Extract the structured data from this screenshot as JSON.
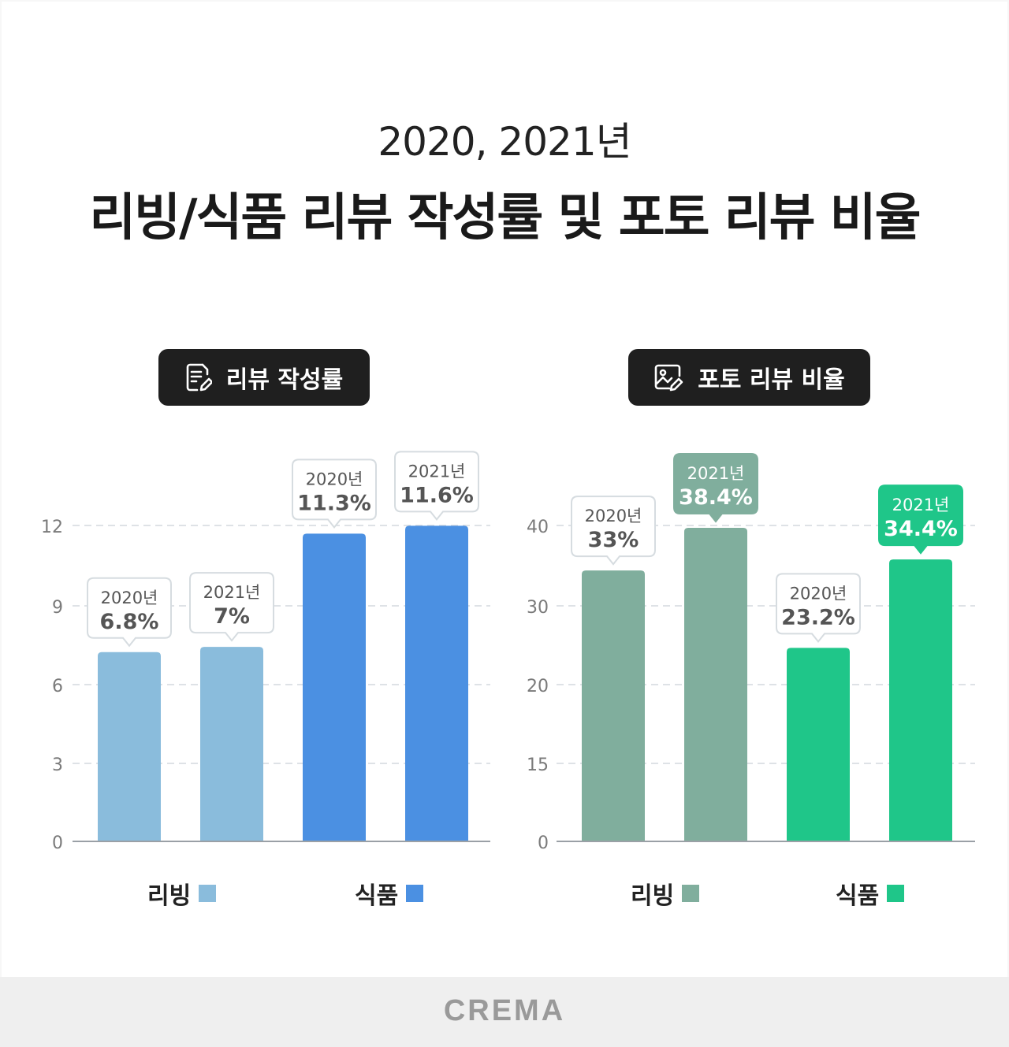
{
  "header": {
    "subtitle": "2020, 2021년",
    "title": "리빙/식품 리뷰 작성률 및 포토 리뷰 비율"
  },
  "footer": {
    "brand": "CREMA"
  },
  "panels": [
    {
      "label": "리뷰 작성률",
      "icon": "document-edit-icon"
    },
    {
      "label": "포토 리뷰 비율",
      "icon": "photo-edit-icon"
    }
  ],
  "chart_data": [
    {
      "type": "bar",
      "title": "리뷰 작성률",
      "categories": [
        "리빙",
        "식품"
      ],
      "series": [
        {
          "name": "리빙",
          "color": "#8abcdc",
          "points": [
            {
              "year": "2020년",
              "label": "6.8%",
              "value": 6.8
            },
            {
              "year": "2021년",
              "label": "7%",
              "value": 7.0
            }
          ]
        },
        {
          "name": "식품",
          "color": "#4b90e2",
          "points": [
            {
              "year": "2020년",
              "label": "11.3%",
              "value": 11.3
            },
            {
              "year": "2021년",
              "label": "11.6%",
              "value": 11.6
            }
          ]
        }
      ],
      "yticks": [
        0,
        3,
        6,
        9,
        12
      ],
      "ylim": [
        0,
        12
      ],
      "grid": true
    },
    {
      "type": "bar",
      "title": "포토 리뷰 비율",
      "categories": [
        "리빙",
        "식품"
      ],
      "series": [
        {
          "name": "리빙",
          "color": "#80ae9d",
          "points": [
            {
              "year": "2020년",
              "label": "33%",
              "value": 33
            },
            {
              "year": "2021년",
              "label": "38.4%",
              "value": 38.4,
              "highlight": true
            }
          ]
        },
        {
          "name": "식품",
          "color": "#1fc689",
          "points": [
            {
              "year": "2020년",
              "label": "23.2%",
              "value": 23.2
            },
            {
              "year": "2021년",
              "label": "34.4%",
              "value": 34.4,
              "highlight": true
            }
          ]
        }
      ],
      "yticks": [
        0,
        15,
        20,
        30,
        40
      ],
      "ylim": [
        0,
        40
      ],
      "grid": true
    }
  ]
}
